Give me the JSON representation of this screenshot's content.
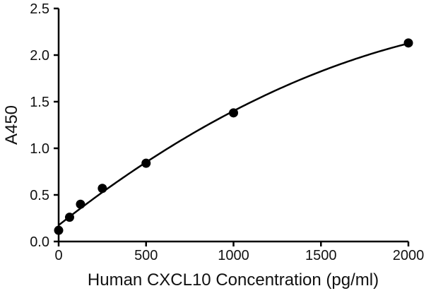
{
  "chart_data": {
    "type": "scatter",
    "title": "",
    "xlabel": "Human CXCL10 Concentration (pg/ml)",
    "ylabel": "A450",
    "xlim": [
      0,
      2000
    ],
    "ylim": [
      0,
      2.5
    ],
    "x_ticks": [
      "0",
      "500",
      "1000",
      "1500",
      "2000"
    ],
    "y_ticks": [
      "0.0",
      "0.5",
      "1.0",
      "1.5",
      "2.0",
      "2.5"
    ],
    "grid": false,
    "legend": "none",
    "series": [
      {
        "points": [
          {
            "x": 0,
            "y": 0.12
          },
          {
            "x": 62.5,
            "y": 0.26
          },
          {
            "x": 125,
            "y": 0.4
          },
          {
            "x": 250,
            "y": 0.57
          },
          {
            "x": 500,
            "y": 0.84
          },
          {
            "x": 1000,
            "y": 1.38
          },
          {
            "x": 2000,
            "y": 2.13
          }
        ],
        "fit_line": true,
        "color": "#000000"
      }
    ]
  }
}
